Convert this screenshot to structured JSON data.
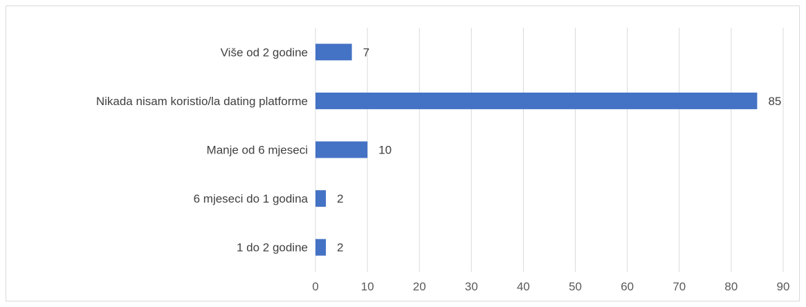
{
  "chart_data": {
    "type": "bar",
    "orientation": "horizontal",
    "categories": [
      "Više od 2 godine",
      "Nikada nisam koristio/la dating platforme",
      "Manje od 6 mjeseci",
      "6 mjeseci do 1 godina",
      "1 do 2 godine"
    ],
    "values": [
      7,
      85,
      10,
      2,
      2
    ],
    "xlim": [
      0,
      90
    ],
    "ticks": [
      "0",
      "10",
      "20",
      "30",
      "40",
      "50",
      "60",
      "70",
      "80",
      "90"
    ],
    "title": "",
    "xlabel": "",
    "ylabel": "",
    "grid": "vertical",
    "legend": "none",
    "bar_color": "#4472c4",
    "grid_color": "#d9d9d9",
    "text_color": "#404040"
  }
}
